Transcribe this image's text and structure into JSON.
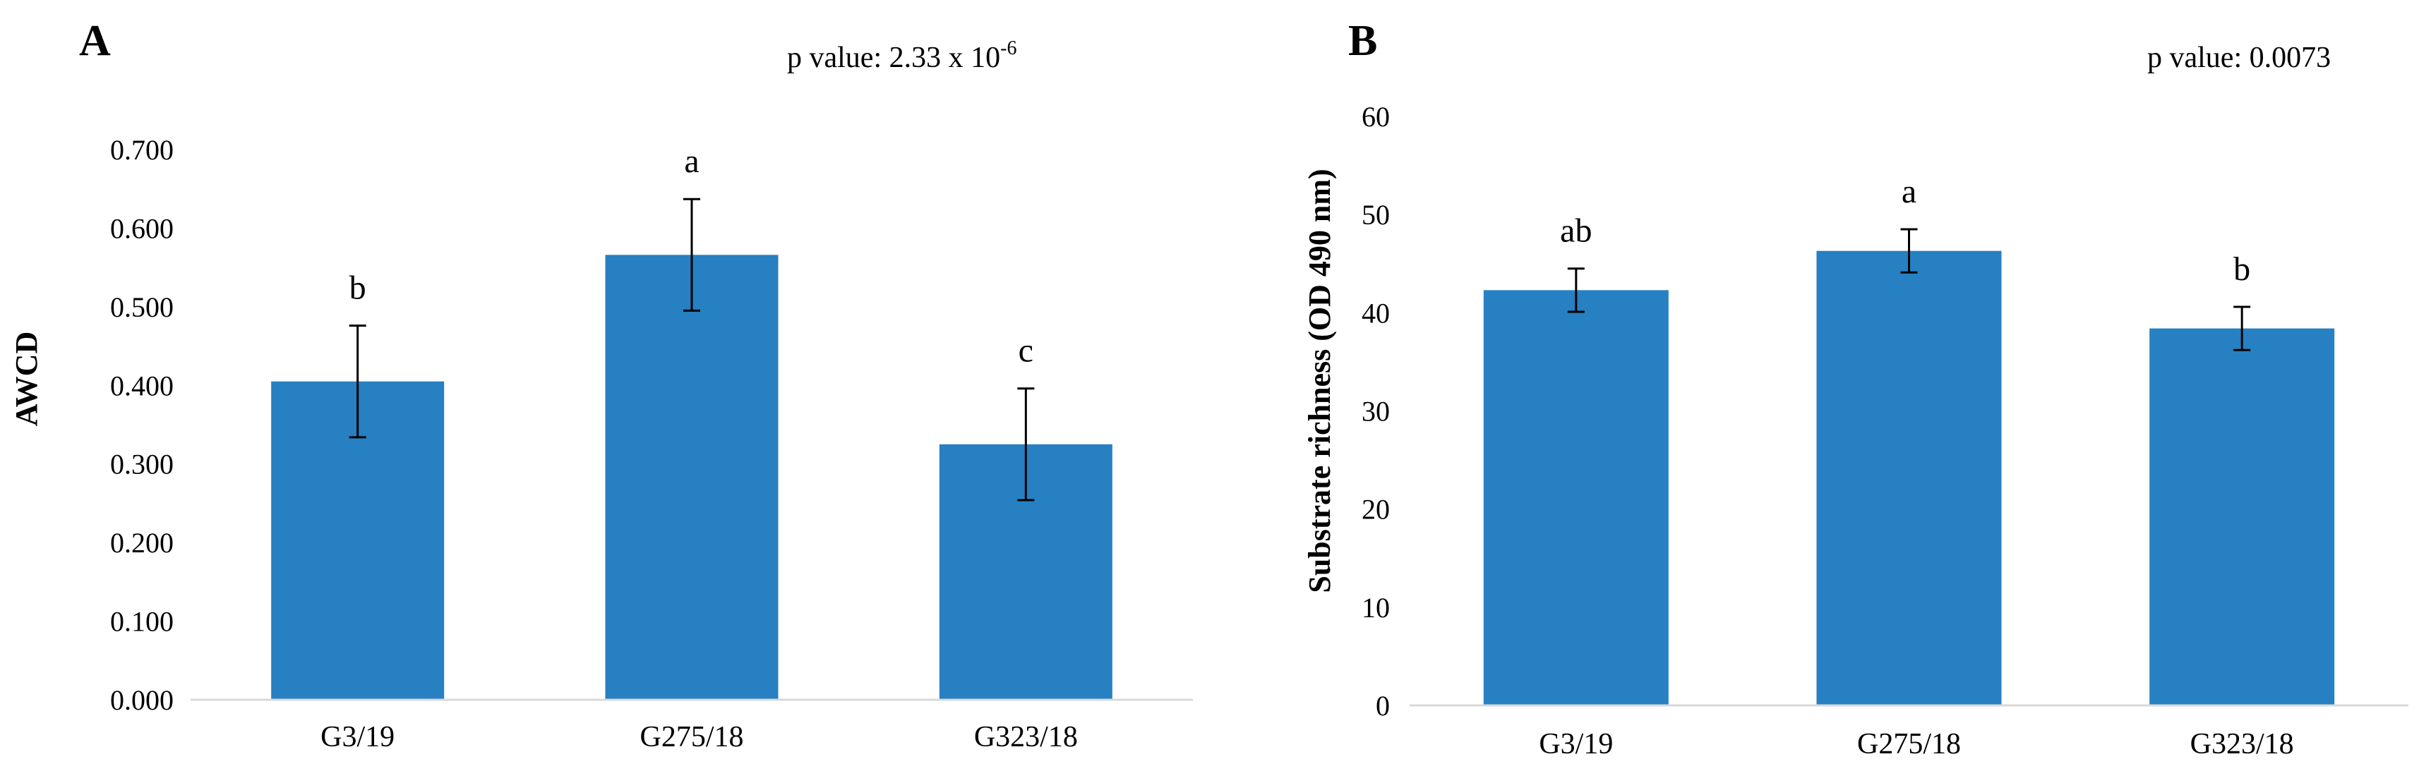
{
  "colors": {
    "bar": "#2680c2",
    "axis": "#d9d9d9",
    "text": "#000000"
  },
  "chart_data": [
    {
      "type": "bar",
      "panel_label": "A",
      "p_value_label": "p value: 2.33 x 10",
      "p_value_exponent": "-6",
      "categories": [
        "G3/19",
        "G275/18",
        "G323/18"
      ],
      "values": [
        0.405,
        0.566,
        0.325
      ],
      "errors": [
        0.071,
        0.071,
        0.071
      ],
      "significance": [
        "b",
        "a",
        "c"
      ],
      "xlabel": "",
      "ylabel": "AWCD",
      "ylim": [
        0,
        0.7
      ],
      "yticks": [
        0,
        0.1,
        0.2,
        0.3,
        0.4,
        0.5,
        0.6,
        0.7
      ],
      "ytick_labels": [
        "0.000",
        "0.100",
        "0.200",
        "0.300",
        "0.400",
        "0.500",
        "0.600",
        "0.700"
      ],
      "grid": false
    },
    {
      "type": "bar",
      "panel_label": "B",
      "p_value_label": "p value: 0.0073",
      "p_value_exponent": "",
      "categories": [
        "G3/19",
        "G275/18",
        "G323/18"
      ],
      "values": [
        42.3,
        46.3,
        38.4
      ],
      "errors": [
        2.2,
        2.2,
        2.2
      ],
      "significance": [
        "ab",
        "a",
        "b"
      ],
      "xlabel": "",
      "ylabel": "Substrate richness (OD 490 nm)",
      "ylim": [
        0,
        60
      ],
      "yticks": [
        0,
        10,
        20,
        30,
        40,
        50,
        60
      ],
      "ytick_labels": [
        "0",
        "10",
        "20",
        "30",
        "40",
        "50",
        "60"
      ],
      "grid": false
    }
  ]
}
